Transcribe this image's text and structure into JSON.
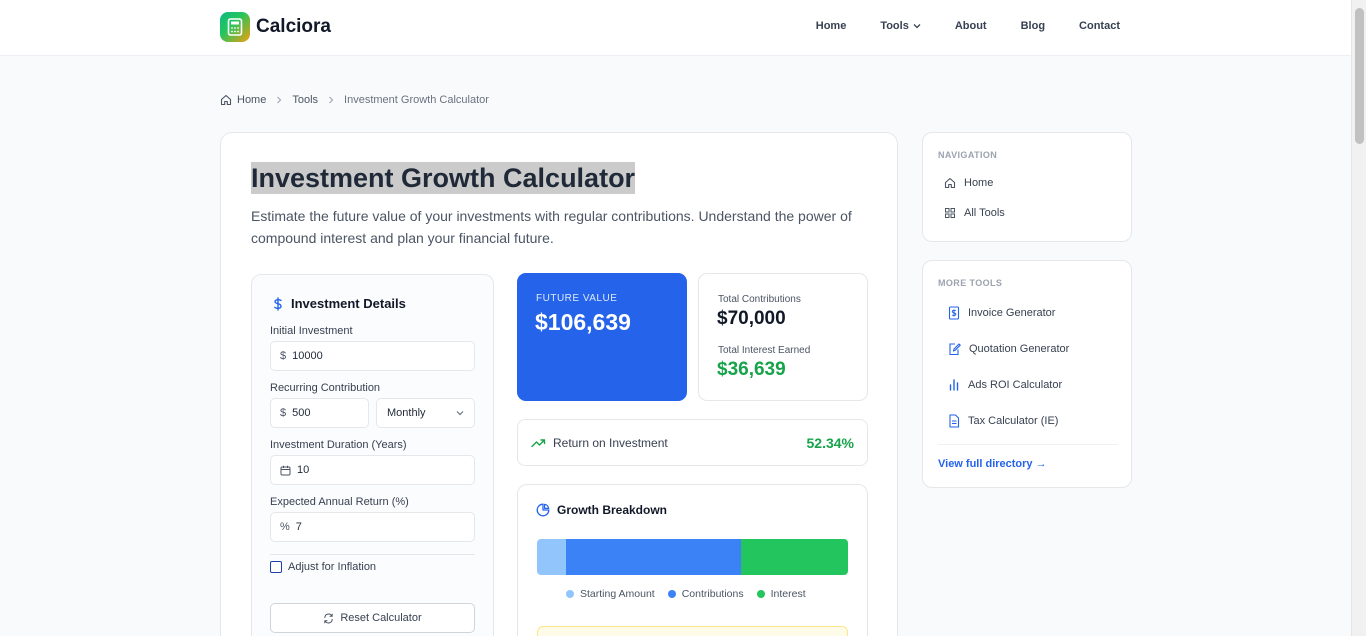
{
  "app": {
    "name": "Calciora"
  },
  "nav": {
    "items": [
      "Home",
      "Tools",
      "About",
      "Blog",
      "Contact"
    ]
  },
  "breadcrumb": {
    "home": "Home",
    "tools": "Tools",
    "current": "Investment Growth Calculator"
  },
  "page": {
    "title": "Investment Growth Calculator",
    "description": "Estimate the future value of your investments with regular contributions. Understand the power of compound interest and plan your financial future."
  },
  "details": {
    "title": "Investment Details",
    "initial_label": "Initial Investment",
    "initial_prefix": "$",
    "initial_value": "10000",
    "recurring_label": "Recurring Contribution",
    "recurring_prefix": "$",
    "recurring_value": "500",
    "frequency": "Monthly",
    "duration_label": "Investment Duration (Years)",
    "duration_value": "10",
    "return_label": "Expected Annual Return (%)",
    "return_prefix": "%",
    "return_value": "7",
    "inflation_label": "Adjust for Inflation",
    "inflation_checked": false,
    "reset_label": "Reset Calculator"
  },
  "results": {
    "future_label": "FUTURE VALUE",
    "future_value": "$106,639",
    "contrib_label": "Total Contributions",
    "contrib_value": "$70,000",
    "interest_label": "Total Interest Earned",
    "interest_value": "$36,639",
    "roi_label": "Return on Investment",
    "roi_value": "52.34%"
  },
  "growth": {
    "title": "Growth Breakdown",
    "segments": [
      {
        "name": "Starting Amount",
        "value": 10000,
        "color": "#93c5fd"
      },
      {
        "name": "Contributions",
        "value": 60000,
        "color": "#3b82f6"
      },
      {
        "name": "Interest",
        "value": 36639,
        "color": "#22c55e"
      }
    ]
  },
  "sidebar": {
    "navigation_heading": "NAVIGATION",
    "nav_items": [
      "Home",
      "All Tools"
    ],
    "more_heading": "MORE TOOLS",
    "tools": [
      "Invoice Generator",
      "Quotation Generator",
      "Ads ROI Calculator",
      "Tax Calculator (IE)"
    ],
    "directory_link": "View full directory →"
  },
  "colors": {
    "accent": "#2563eb",
    "success": "#16a34a"
  }
}
